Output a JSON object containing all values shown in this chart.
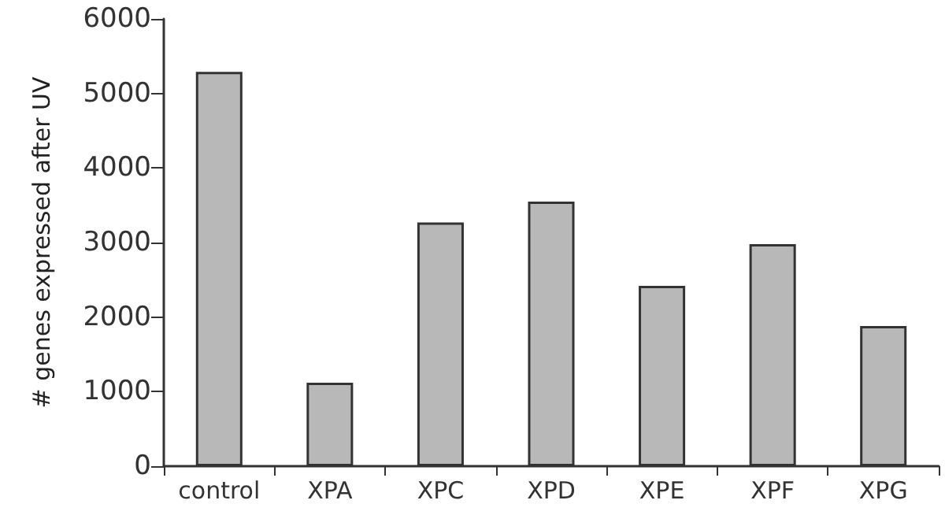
{
  "chart_data": {
    "type": "bar",
    "ylabel": "# genes expressed after UV",
    "categories": [
      "control",
      "XPA",
      "XPC",
      "XPD",
      "XPE",
      "XPF",
      "XPG"
    ],
    "values": [
      5290,
      1120,
      3270,
      3550,
      2420,
      2980,
      1880
    ],
    "color": "#b8b8b8",
    "ylim": [
      0,
      6000
    ],
    "yticks": [
      0,
      1000,
      2000,
      3000,
      4000,
      5000,
      6000
    ],
    "grid": false
  }
}
